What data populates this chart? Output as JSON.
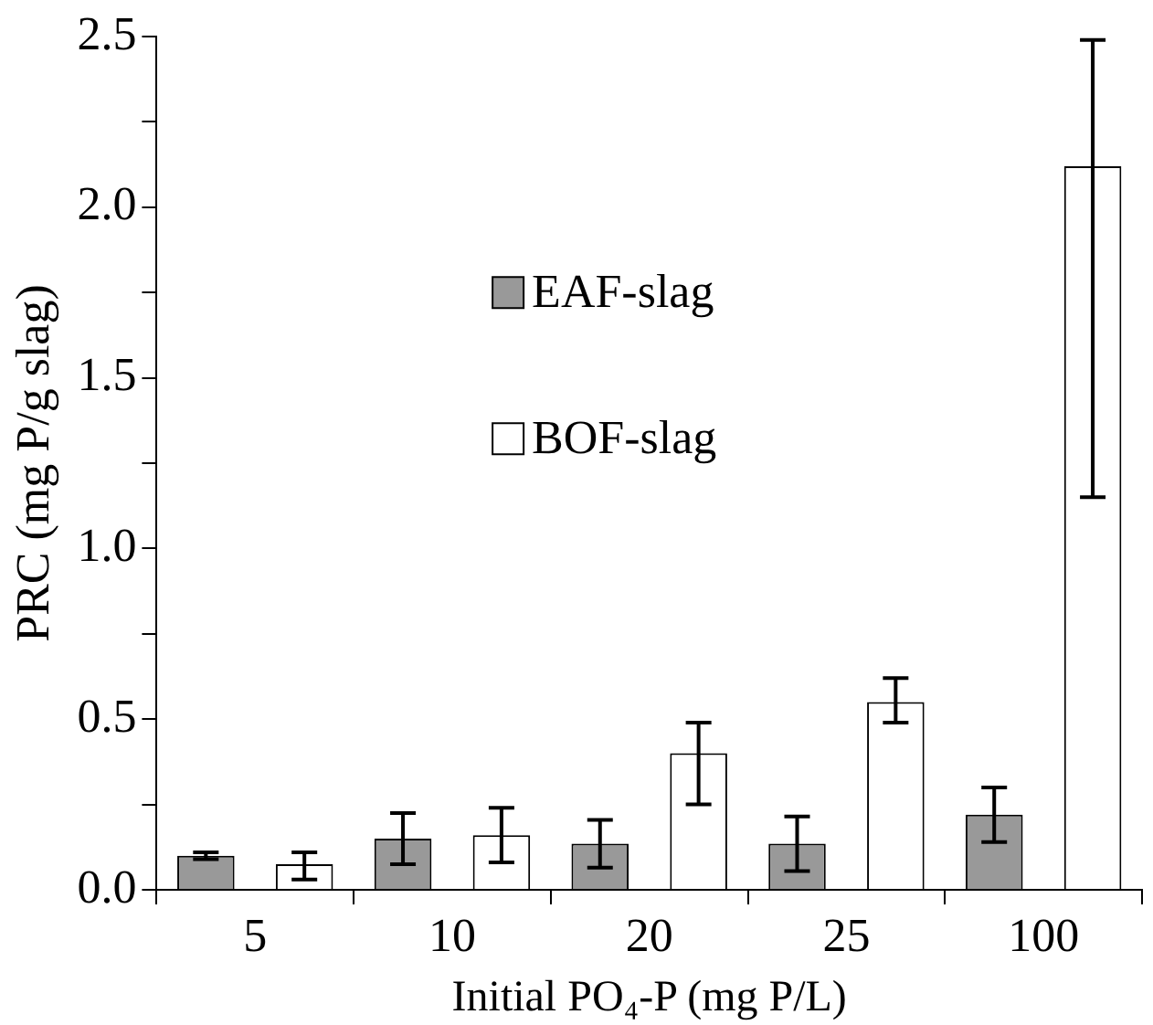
{
  "chart_data": {
    "type": "bar",
    "xlabel": "Initial PO₄-P (mg P/L)",
    "ylabel": "PRC (mg P/g slag)",
    "categories": [
      "5",
      "10",
      "20",
      "25",
      "100"
    ],
    "series": [
      {
        "name": "EAF-slag",
        "color": "#999999",
        "values": [
          0.1,
          0.15,
          0.135,
          0.135,
          0.22
        ],
        "errors": [
          0.01,
          0.075,
          0.07,
          0.08,
          0.08
        ]
      },
      {
        "name": "BOF-slag",
        "color": "#ffffff",
        "values": [
          0.075,
          0.16,
          0.4,
          0.55,
          2.12
        ],
        "errors": [
          [
            0.03,
            0.11
          ],
          [
            0.08,
            0.24
          ],
          [
            0.25,
            0.49
          ],
          [
            0.49,
            0.62
          ],
          [
            1.15,
            2.49
          ]
        ]
      }
    ],
    "ylim": [
      0,
      2.5
    ],
    "yticks": [
      {
        "value": 0,
        "label": "0.0"
      },
      {
        "value": 0.25,
        "label": null
      },
      {
        "value": 0.5,
        "label": "0.5"
      },
      {
        "value": 0.75,
        "label": null
      },
      {
        "value": 1,
        "label": "1.0"
      },
      {
        "value": 1.25,
        "label": null
      },
      {
        "value": 1.5,
        "label": "1.5"
      },
      {
        "value": 1.75,
        "label": null
      },
      {
        "value": 2,
        "label": "2.0"
      },
      {
        "value": 2.25,
        "label": null
      },
      {
        "value": 2.5,
        "label": "2.5"
      }
    ],
    "grid": false,
    "legend": "top"
  }
}
